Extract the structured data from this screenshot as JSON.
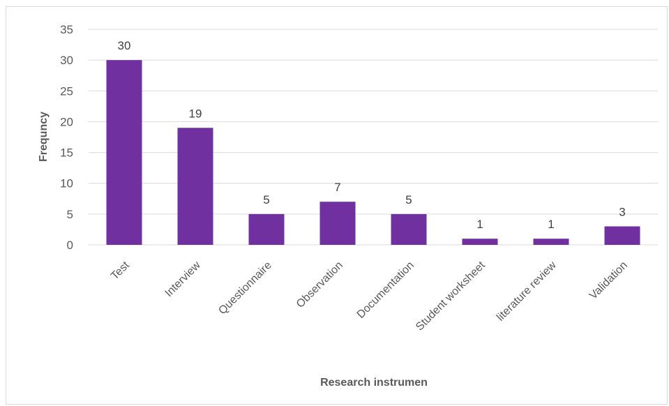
{
  "chart_data": {
    "type": "bar",
    "categories": [
      "Test",
      "Interview",
      "Questionnaire",
      "Observation",
      "Documentation",
      "Student worksheet",
      "literature review",
      "Validation"
    ],
    "values": [
      30,
      19,
      5,
      7,
      5,
      1,
      1,
      3
    ],
    "xlabel": "Research instrumen",
    "ylabel": "Frequncy",
    "ylim": [
      0,
      35
    ],
    "yticks": [
      0,
      5,
      10,
      15,
      20,
      25,
      30,
      35
    ],
    "grid": true,
    "legend": "none",
    "bar_color": "#7030a0",
    "grid_color": "#d9d9d9"
  }
}
